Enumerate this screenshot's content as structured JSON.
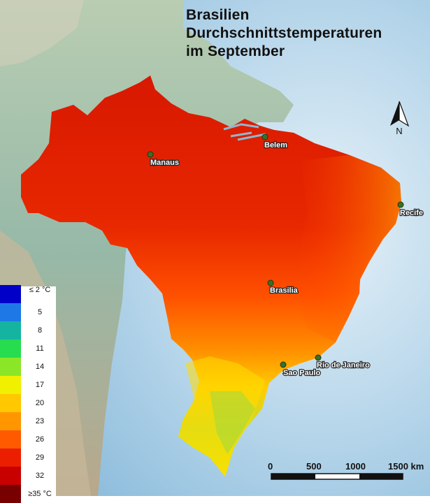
{
  "title": {
    "line1": "Brasilien",
    "line2": "Durchschnittstemperaturen",
    "line3": "im September"
  },
  "north_arrow": {
    "label": "N"
  },
  "cities": [
    {
      "name": "Manaus"
    },
    {
      "name": "Belem"
    },
    {
      "name": "Recife"
    },
    {
      "name": "Brasilia"
    },
    {
      "name": "Rio de Janeiro"
    },
    {
      "name": "Sao Paulo"
    }
  ],
  "legend": {
    "items": [
      {
        "label": "≤ 2 °C",
        "color": "#0000c8"
      },
      {
        "label": "5",
        "color": "#1e78e6"
      },
      {
        "label": "8",
        "color": "#14b4a0"
      },
      {
        "label": "11",
        "color": "#28dc50"
      },
      {
        "label": "14",
        "color": "#8ce628"
      },
      {
        "label": "17",
        "color": "#f0f000"
      },
      {
        "label": "20",
        "color": "#ffc800"
      },
      {
        "label": "23",
        "color": "#ff9600"
      },
      {
        "label": "26",
        "color": "#ff5a00"
      },
      {
        "label": "29",
        "color": "#eb1e00"
      },
      {
        "label": "32",
        "color": "#c80000"
      },
      {
        "label": "≥35 °C",
        "color": "#780000"
      }
    ]
  },
  "scale_bar": {
    "labels": [
      "0",
      "500",
      "1000",
      "1500 km"
    ]
  },
  "colors": {
    "ocean": "#a9cde6",
    "land_surrounding": "#9fbfae",
    "brazil_hot": "#e62808",
    "brazil_warm": "#ff7a00",
    "brazil_mild": "#ffd200",
    "city_dot": "#3c6e28"
  }
}
